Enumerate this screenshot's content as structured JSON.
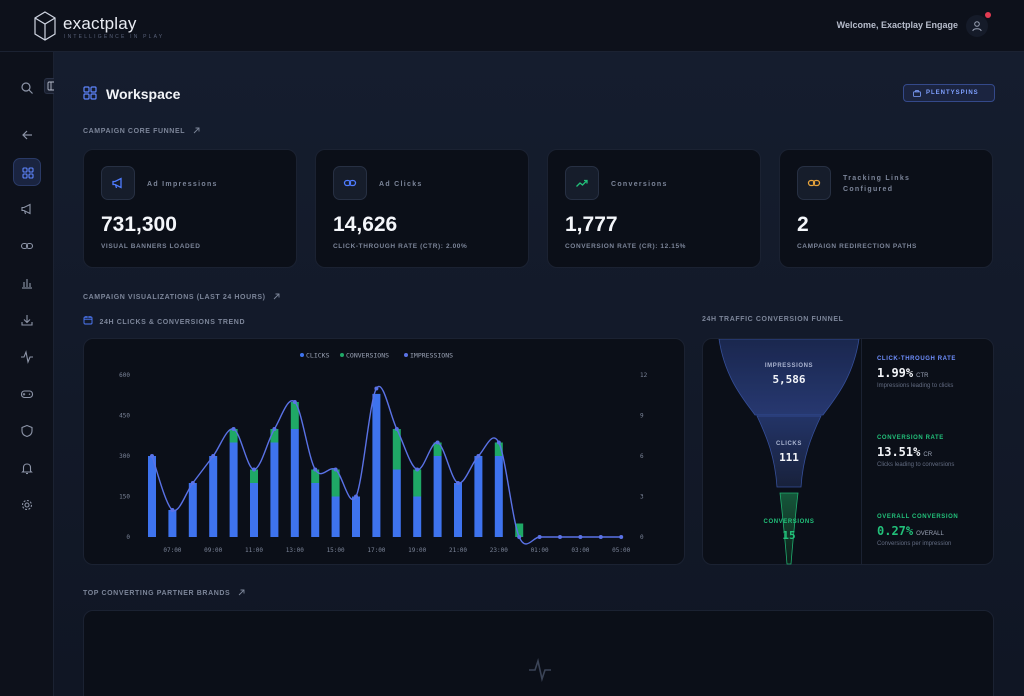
{
  "header": {
    "app_name": "exactplay",
    "tagline": "INTELLIGENCE IN PLAY",
    "welcome": "Welcome, Exactplay Engage",
    "user_icon": "user-icon"
  },
  "sidebar": {
    "items": [
      {
        "icon": "search-icon"
      },
      {
        "icon": "arrow-left-icon"
      },
      {
        "icon": "grid-icon",
        "active": true
      },
      {
        "icon": "megaphone-icon"
      },
      {
        "icon": "link-icon"
      },
      {
        "icon": "bar-chart-icon"
      },
      {
        "icon": "download-icon"
      },
      {
        "icon": "activity-icon"
      },
      {
        "icon": "gamepad-icon"
      },
      {
        "icon": "shield-icon"
      },
      {
        "icon": "bell-icon"
      },
      {
        "icon": "gear-icon"
      }
    ]
  },
  "page": {
    "title": "Workspace",
    "brand_badge": "PLENTYSPINS"
  },
  "sections": {
    "funnel": "CAMPAIGN CORE FUNNEL",
    "visualizations": "CAMPAIGN VISUALIZATIONS (LAST 24 HOURS)",
    "trend": "24H CLICKS & CONVERSIONS TREND",
    "traffic_funnel": "24H TRAFFIC CONVERSION FUNNEL",
    "partners": "TOP CONVERTING PARTNER BRANDS"
  },
  "kpis": [
    {
      "label": "Ad Impressions",
      "value": "731,300",
      "sub": "VISUAL BANNERS LOADED",
      "icon": "megaphone-icon",
      "color": "#4f7cff"
    },
    {
      "label": "Ad Clicks",
      "value": "14,626",
      "sub": "CLICK-THROUGH RATE (CTR): 2.00%",
      "icon": "link-icon",
      "color": "#4f7cff"
    },
    {
      "label": "Conversions",
      "value": "1,777",
      "sub": "CONVERSION RATE (CR): 12.15%",
      "icon": "trending-up-icon",
      "color": "#22c07a"
    },
    {
      "label": "Tracking Links Configured",
      "value": "2",
      "sub": "CAMPAIGN REDIRECTION PATHS",
      "icon": "link-icon",
      "color": "#e7a33c"
    }
  ],
  "chart_data": {
    "type": "bar",
    "legend": [
      "CLICKS",
      "CONVERSIONS",
      "IMPRESSIONS"
    ],
    "colors": {
      "clicks": "#3e73ee",
      "conversions": "#1fa866",
      "impressions": "#5a72e6"
    },
    "x_ticks": [
      "07:00",
      "09:00",
      "11:00",
      "13:00",
      "15:00",
      "17:00",
      "19:00",
      "21:00",
      "23:00",
      "01:00",
      "03:00",
      "05:00"
    ],
    "y_left_ticks": [
      "600",
      "450",
      "300",
      "150",
      "0"
    ],
    "y_right_ticks": [
      "12",
      "9",
      "6",
      "3",
      "0"
    ],
    "ylim_left": [
      0,
      600
    ],
    "ylim_right": [
      0,
      12
    ],
    "hours": [
      "06:00",
      "07:00",
      "08:00",
      "09:00",
      "10:00",
      "11:00",
      "12:00",
      "13:00",
      "14:00",
      "15:00",
      "16:00",
      "17:00",
      "18:00",
      "19:00",
      "20:00",
      "21:00",
      "22:00",
      "23:00",
      "00:00",
      "01:00",
      "02:00",
      "03:00",
      "04:00",
      "05:00"
    ],
    "series": [
      {
        "name": "CLICKS",
        "values": [
          300,
          100,
          200,
          300,
          350,
          200,
          350,
          400,
          200,
          150,
          150,
          530,
          250,
          150,
          300,
          200,
          300,
          300,
          0,
          0,
          0,
          0,
          0,
          0
        ]
      },
      {
        "name": "CONVERSIONS",
        "values": [
          0,
          0,
          0,
          0,
          1,
          1,
          1,
          2,
          1,
          2,
          0,
          0,
          3,
          2,
          1,
          0,
          0,
          1,
          1,
          0,
          0,
          0,
          0,
          0
        ]
      },
      {
        "name": "IMPRESSIONS",
        "values": [
          300,
          100,
          200,
          300,
          400,
          250,
          400,
          500,
          250,
          250,
          150,
          550,
          400,
          250,
          350,
          200,
          300,
          350,
          0,
          0,
          0,
          0,
          0,
          0
        ]
      }
    ]
  },
  "traffic_funnel": {
    "impressions_label": "IMPRESSIONS",
    "impressions_value": "5,586",
    "clicks_label": "CLICKS",
    "clicks_value": "111",
    "conversions_label": "CONVERSIONS",
    "conversions_value": "15",
    "rates": [
      {
        "label": "CLICK-THROUGH RATE",
        "value": "1.99%",
        "unit": "CTR",
        "desc": "Impressions leading to clicks",
        "color": "#6f8fff"
      },
      {
        "label": "CONVERSION RATE",
        "value": "13.51%",
        "unit": "CR",
        "desc": "Clicks leading to conversions",
        "color": "#22c07a"
      },
      {
        "label": "OVERALL CONVERSION",
        "value": "0.27%",
        "unit": "OVERALL",
        "desc": "Conversions per impression",
        "color": "#22c07a"
      }
    ]
  }
}
